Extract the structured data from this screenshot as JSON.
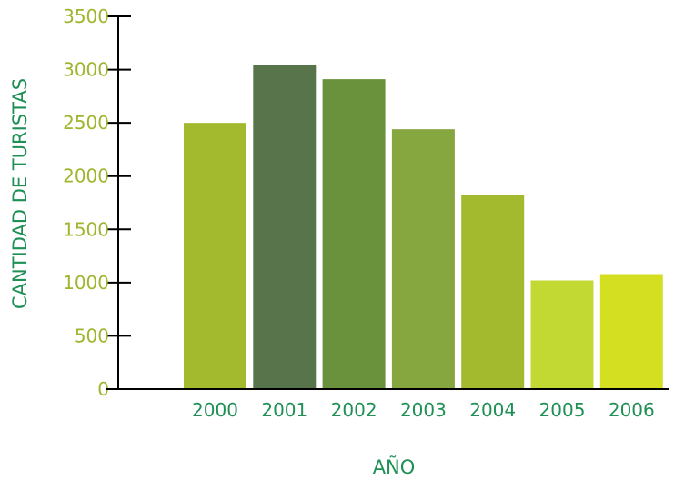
{
  "chart_data": {
    "type": "bar",
    "title": "",
    "xlabel": "AÑO",
    "ylabel": "CANTIDAD DE TURISTAS",
    "categories": [
      "2000",
      "2001",
      "2002",
      "2003",
      "2004",
      "2005",
      "2006"
    ],
    "values": [
      2500,
      3040,
      2910,
      2440,
      1820,
      1020,
      1080
    ],
    "bar_colors": [
      "#a3ba2f",
      "#58744a",
      "#6a913c",
      "#86a63f",
      "#a3ba2f",
      "#c2d933",
      "#d5df22"
    ],
    "ylim": [
      0,
      3500
    ],
    "yticks": [
      0,
      500,
      1000,
      1500,
      2000,
      2500,
      3000,
      3500
    ],
    "grid": false,
    "legend": "none",
    "colors": {
      "y_tick_labels": "#9fb52d",
      "x_tick_labels": "#1f8f55",
      "axis_titles": "#1f8f55",
      "axis_line": "#000000"
    }
  }
}
